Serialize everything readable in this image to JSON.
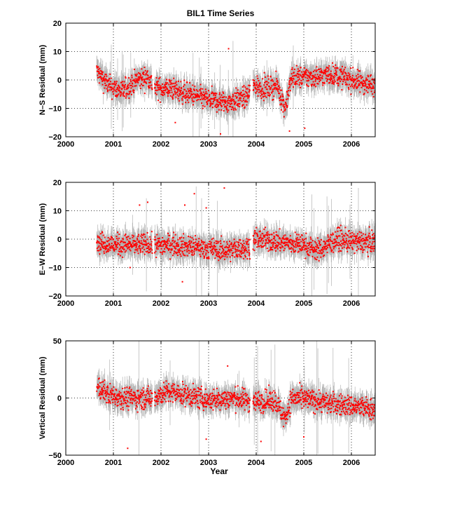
{
  "chart_data": [
    {
      "type": "scatter",
      "title": "BIL1 Time Series",
      "ylabel": "N–S Residual (mm)",
      "xlabel": "",
      "xlim": [
        2000,
        2006.5
      ],
      "ylim": [
        -20,
        20
      ],
      "xticks": [
        "2000",
        "2001",
        "2002",
        "2003",
        "2004",
        "2005",
        "2006"
      ],
      "yticks": [
        "20",
        "10",
        "0",
        "−10",
        "−20"
      ],
      "grid": true,
      "series_colors": {
        "points": "#ff0000",
        "errorbars": "#b3b3b3"
      },
      "trend": [
        [
          2000.65,
          3
        ],
        [
          2000.9,
          -2
        ],
        [
          2001.2,
          -4
        ],
        [
          2001.5,
          0
        ],
        [
          2001.75,
          1
        ],
        [
          2001.85,
          -3
        ],
        [
          2002.2,
          -3
        ],
        [
          2002.6,
          -5
        ],
        [
          2003.0,
          -7
        ],
        [
          2003.4,
          -8
        ],
        [
          2003.8,
          -6
        ],
        [
          2003.95,
          -2
        ],
        [
          2004.2,
          -3
        ],
        [
          2004.45,
          -2
        ],
        [
          2004.6,
          -10
        ],
        [
          2004.75,
          1
        ],
        [
          2005.2,
          1
        ],
        [
          2005.6,
          2
        ],
        [
          2006.0,
          0
        ],
        [
          2006.5,
          -2
        ]
      ],
      "gaps": [
        [
          2001.82,
          2001.86
        ],
        [
          2003.87,
          2003.93
        ]
      ],
      "outliers": [
        [
          2003.42,
          11
        ],
        [
          2004.7,
          -18
        ],
        [
          2005.02,
          -17
        ],
        [
          2002.3,
          -15
        ],
        [
          2003.25,
          -19
        ]
      ]
    },
    {
      "type": "scatter",
      "title": "",
      "ylabel": "E–W Residual (mm)",
      "xlabel": "",
      "xlim": [
        2000,
        2006.5
      ],
      "ylim": [
        -20,
        20
      ],
      "xticks": [
        "2000",
        "2001",
        "2002",
        "2003",
        "2004",
        "2005",
        "2006"
      ],
      "yticks": [
        "20",
        "10",
        "0",
        "−10",
        "−20"
      ],
      "grid": true,
      "series_colors": {
        "points": "#ff0000",
        "errorbars": "#b3b3b3"
      },
      "trend": [
        [
          2000.65,
          -1
        ],
        [
          2001.0,
          -2
        ],
        [
          2001.5,
          -2
        ],
        [
          2001.85,
          -2
        ],
        [
          2002.3,
          -2
        ],
        [
          2002.8,
          -3
        ],
        [
          2003.3,
          -4
        ],
        [
          2003.8,
          -3
        ],
        [
          2004.0,
          0
        ],
        [
          2004.5,
          -1
        ],
        [
          2005.0,
          -2
        ],
        [
          2005.3,
          -4
        ],
        [
          2005.7,
          0
        ],
        [
          2006.0,
          -1
        ],
        [
          2006.5,
          -1
        ]
      ],
      "gaps": [
        [
          2001.82,
          2001.86
        ],
        [
          2003.87,
          2003.93
        ]
      ],
      "outliers": [
        [
          2001.55,
          12
        ],
        [
          2001.72,
          13
        ],
        [
          2002.5,
          12
        ],
        [
          2002.7,
          16
        ],
        [
          2002.95,
          11
        ],
        [
          2003.33,
          18
        ],
        [
          2002.45,
          -15
        ],
        [
          2001.35,
          -10
        ]
      ]
    },
    {
      "type": "scatter",
      "title": "",
      "ylabel": "Vertical Residual (mm)",
      "xlabel": "Year",
      "xlim": [
        2000,
        2006.5
      ],
      "ylim": [
        -50,
        50
      ],
      "xticks": [
        "2000",
        "2001",
        "2002",
        "2003",
        "2004",
        "2005",
        "2006"
      ],
      "yticks": [
        "50",
        "0",
        "−50"
      ],
      "grid": true,
      "series_colors": {
        "points": "#ff0000",
        "errorbars": "#b3b3b3"
      },
      "trend": [
        [
          2000.65,
          10
        ],
        [
          2000.9,
          3
        ],
        [
          2001.3,
          0
        ],
        [
          2001.8,
          0
        ],
        [
          2002.1,
          5
        ],
        [
          2002.5,
          3
        ],
        [
          2003.0,
          -2
        ],
        [
          2003.5,
          0
        ],
        [
          2004.0,
          -3
        ],
        [
          2004.4,
          -2
        ],
        [
          2004.6,
          -18
        ],
        [
          2004.75,
          0
        ],
        [
          2005.2,
          -2
        ],
        [
          2005.6,
          -5
        ],
        [
          2006.0,
          -7
        ],
        [
          2006.5,
          -10
        ]
      ],
      "gaps": [
        [
          2001.82,
          2001.86
        ],
        [
          2003.87,
          2003.93
        ]
      ],
      "outliers": [
        [
          2001.3,
          -44
        ],
        [
          2003.4,
          28
        ],
        [
          2004.1,
          -38
        ],
        [
          2005.0,
          -34
        ],
        [
          2002.95,
          -36
        ]
      ]
    }
  ]
}
